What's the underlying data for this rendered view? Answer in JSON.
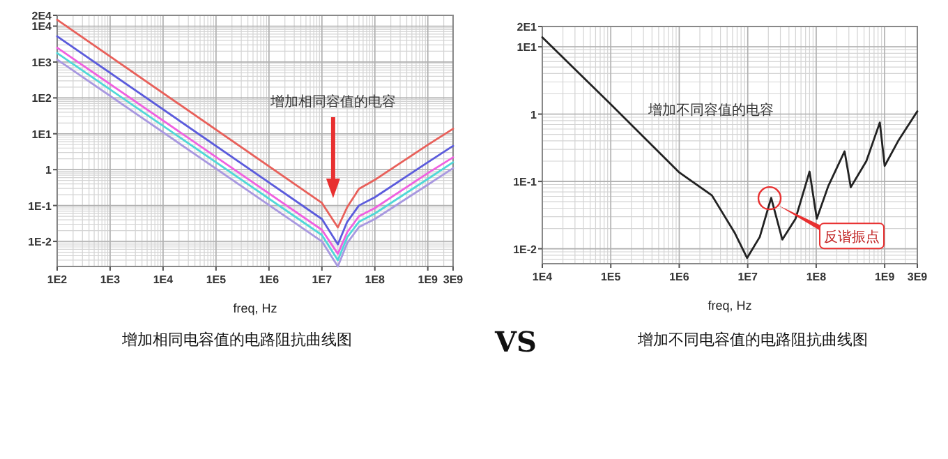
{
  "chart_data": [
    {
      "type": "line",
      "title": "增加相同电容值的电路阻抗曲线图",
      "xlabel": "freq, Hz",
      "log": "xy",
      "grid": true,
      "xlim": [
        100,
        3000000000
      ],
      "ylim": [
        0.002,
        20000
      ],
      "xticks": [
        {
          "value": 100,
          "label": "1E2"
        },
        {
          "value": 1000,
          "label": "1E3"
        },
        {
          "value": 10000,
          "label": "1E4"
        },
        {
          "value": 100000,
          "label": "1E5"
        },
        {
          "value": 1000000,
          "label": "1E6"
        },
        {
          "value": 10000000,
          "label": "1E7"
        },
        {
          "value": 100000000,
          "label": "1E8"
        },
        {
          "value": 1000000000,
          "label": "1E9"
        },
        {
          "value": 3000000000,
          "label": "3E9"
        }
      ],
      "yticks": [
        {
          "value": 20000,
          "label": "2E4"
        },
        {
          "value": 10000,
          "label": "1E4"
        },
        {
          "value": 1000,
          "label": "1E3"
        },
        {
          "value": 100,
          "label": "1E2"
        },
        {
          "value": 10,
          "label": "1E1"
        },
        1,
        {
          "value": 0.1,
          "label": "1E-1"
        },
        {
          "value": 0.01,
          "label": "1E-2"
        }
      ],
      "x": [
        100,
        10000000,
        20000000,
        30000000,
        50000000,
        100000000,
        1000000000,
        3000000000
      ],
      "series": [
        {
          "color": "#e8605a",
          "values": [
            15000,
            0.118,
            0.0245,
            0.09,
            0.29,
            0.52,
            4.9,
            13.8
          ]
        },
        {
          "color": "#5b5bdc",
          "values": [
            5200,
            0.042,
            0.0083,
            0.035,
            0.1,
            0.17,
            1.6,
            4.6
          ]
        },
        {
          "color": "#f060e0",
          "values": [
            2500,
            0.021,
            0.0045,
            0.018,
            0.05,
            0.085,
            0.8,
            2.2
          ]
        },
        {
          "color": "#50d8d8",
          "values": [
            1780,
            0.015,
            0.003,
            0.013,
            0.035,
            0.06,
            0.55,
            1.6
          ]
        },
        {
          "color": "#a898e0",
          "values": [
            1170,
            0.01,
            0.002,
            0.009,
            0.025,
            0.042,
            0.38,
            1.1
          ]
        }
      ],
      "annotations": [
        "增加相同容值的电容"
      ]
    },
    {
      "type": "line",
      "title": "增加不同电容值的电路阻抗曲线图",
      "xlabel": "freq, Hz",
      "log": "xy",
      "grid": true,
      "xlim": [
        10000,
        3000000000
      ],
      "ylim": [
        0.006,
        20
      ],
      "xticks": [
        {
          "value": 10000,
          "label": "1E4"
        },
        {
          "value": 100000,
          "label": "1E5"
        },
        {
          "value": 1000000,
          "label": "1E6"
        },
        {
          "value": 10000000,
          "label": "1E7"
        },
        {
          "value": 100000000,
          "label": "1E8"
        },
        {
          "value": 1000000000,
          "label": "1E9"
        },
        {
          "value": 3000000000,
          "label": "3E9"
        }
      ],
      "yticks": [
        {
          "value": 20,
          "label": "2E1"
        },
        {
          "value": 10,
          "label": "1E1"
        },
        1,
        {
          "value": 0.1,
          "label": "1E-1"
        },
        {
          "value": 0.01,
          "label": "1E-2"
        }
      ],
      "x": [
        10000,
        100000,
        1000000,
        3000000,
        6500000,
        9800000,
        15000000,
        22000000,
        32000000,
        50000000,
        80000000,
        102000000,
        150000000,
        260000000,
        320000000,
        540000000,
        850000000,
        1000000000,
        1600000000,
        3000000000
      ],
      "series": [
        {
          "color": "#222222",
          "values": [
            13.8,
            1.4,
            0.136,
            0.062,
            0.017,
            0.0073,
            0.015,
            0.057,
            0.0137,
            0.028,
            0.14,
            0.028,
            0.085,
            0.28,
            0.082,
            0.2,
            0.75,
            0.17,
            0.41,
            1.1
          ]
        }
      ],
      "annotations": [
        "增加不同容值的电容",
        "反谐振点",
        "VS"
      ]
    }
  ]
}
